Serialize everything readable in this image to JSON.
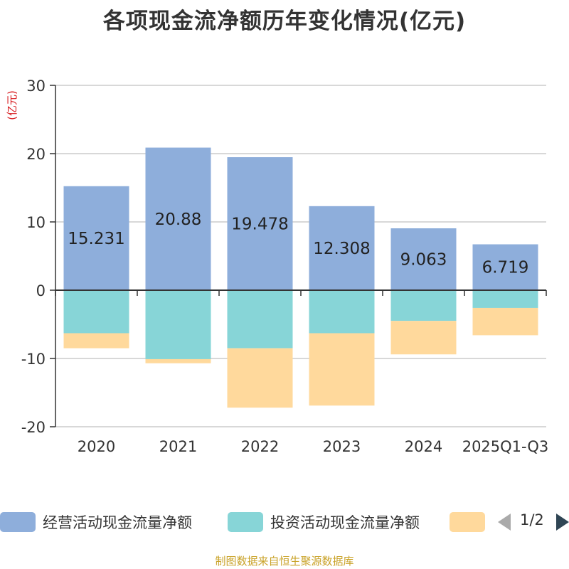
{
  "chart_data": {
    "type": "bar",
    "stacked": true,
    "title": "各项现金流净额历年变化情况(亿元)",
    "ylabel": "(亿元)",
    "xlabel": "",
    "ylim": [
      -20,
      30
    ],
    "yticks": [
      30,
      20,
      10,
      0,
      -10,
      -20
    ],
    "grid": true,
    "categories": [
      "2020",
      "2021",
      "2022",
      "2023",
      "2024",
      "2025Q1-Q3"
    ],
    "series": [
      {
        "name": "经营活动现金流量净额",
        "color": "#8eaedb",
        "values": [
          15.231,
          20.88,
          19.478,
          12.308,
          9.063,
          6.719
        ],
        "labels": [
          "15.231",
          "20.88",
          "19.478",
          "12.308",
          "9.063",
          "6.719"
        ]
      },
      {
        "name": "投资活动现金流量净额",
        "color": "#87d5d7",
        "values": [
          -6.3,
          -10.1,
          -8.5,
          -6.3,
          -4.5,
          -2.6
        ]
      },
      {
        "name": "",
        "color": "#ffd99c",
        "values": [
          -2.2,
          -0.6,
          -8.7,
          -10.6,
          -4.9,
          -4.0
        ]
      }
    ],
    "legend_position": "bottom",
    "legend_page": "1/2",
    "source": "制图数据来自恒生聚源数据库"
  }
}
